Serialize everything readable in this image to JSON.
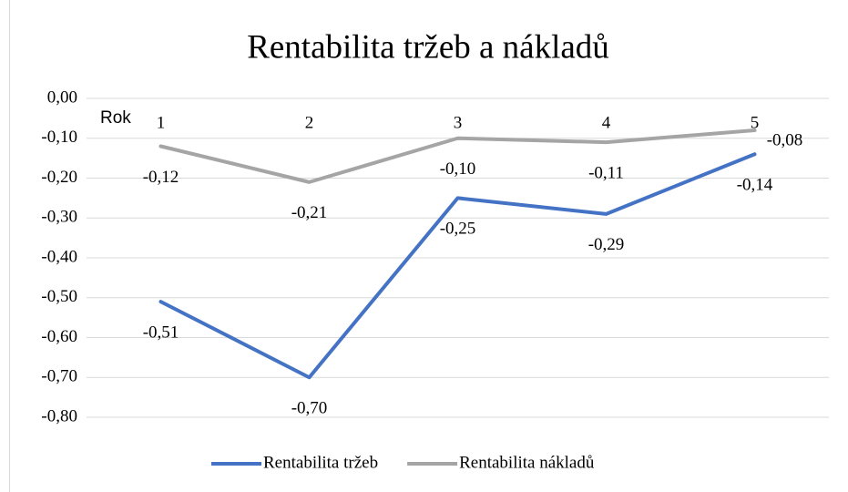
{
  "chart_data": {
    "type": "line",
    "title": "Rentabilita tržeb a nákladů",
    "x_label": "Rok",
    "categories": [
      "1",
      "2",
      "3",
      "4",
      "5"
    ],
    "series": [
      {
        "name": "Rentabilita tržeb",
        "color": "#4472c4",
        "values": [
          -0.51,
          -0.7,
          -0.25,
          -0.29,
          -0.14
        ],
        "value_labels": [
          "-0,51",
          "-0,70",
          "-0,25",
          "-0,29",
          "-0,14"
        ]
      },
      {
        "name": "Rentabilita nákladů",
        "color": "#a5a5a5",
        "values": [
          -0.12,
          -0.21,
          -0.1,
          -0.11,
          -0.08
        ],
        "value_labels": [
          "-0,12",
          "-0,21",
          "-0,10",
          "-0,11",
          "-0,08"
        ]
      }
    ],
    "ylim": [
      -0.8,
      0.0
    ],
    "yticks": [
      {
        "value": 0,
        "label": "0,00"
      },
      {
        "value": -0.1,
        "label": "-0,10"
      },
      {
        "value": -0.2,
        "label": "-0,20"
      },
      {
        "value": -0.3,
        "label": "-0,30"
      },
      {
        "value": -0.4,
        "label": "-0,40"
      },
      {
        "value": -0.5,
        "label": "-0,50"
      },
      {
        "value": -0.6,
        "label": "-0,60"
      },
      {
        "value": -0.7,
        "label": "-0,70"
      },
      {
        "value": -0.8,
        "label": "-0,80"
      }
    ],
    "grid": true,
    "legend": "bottom"
  }
}
